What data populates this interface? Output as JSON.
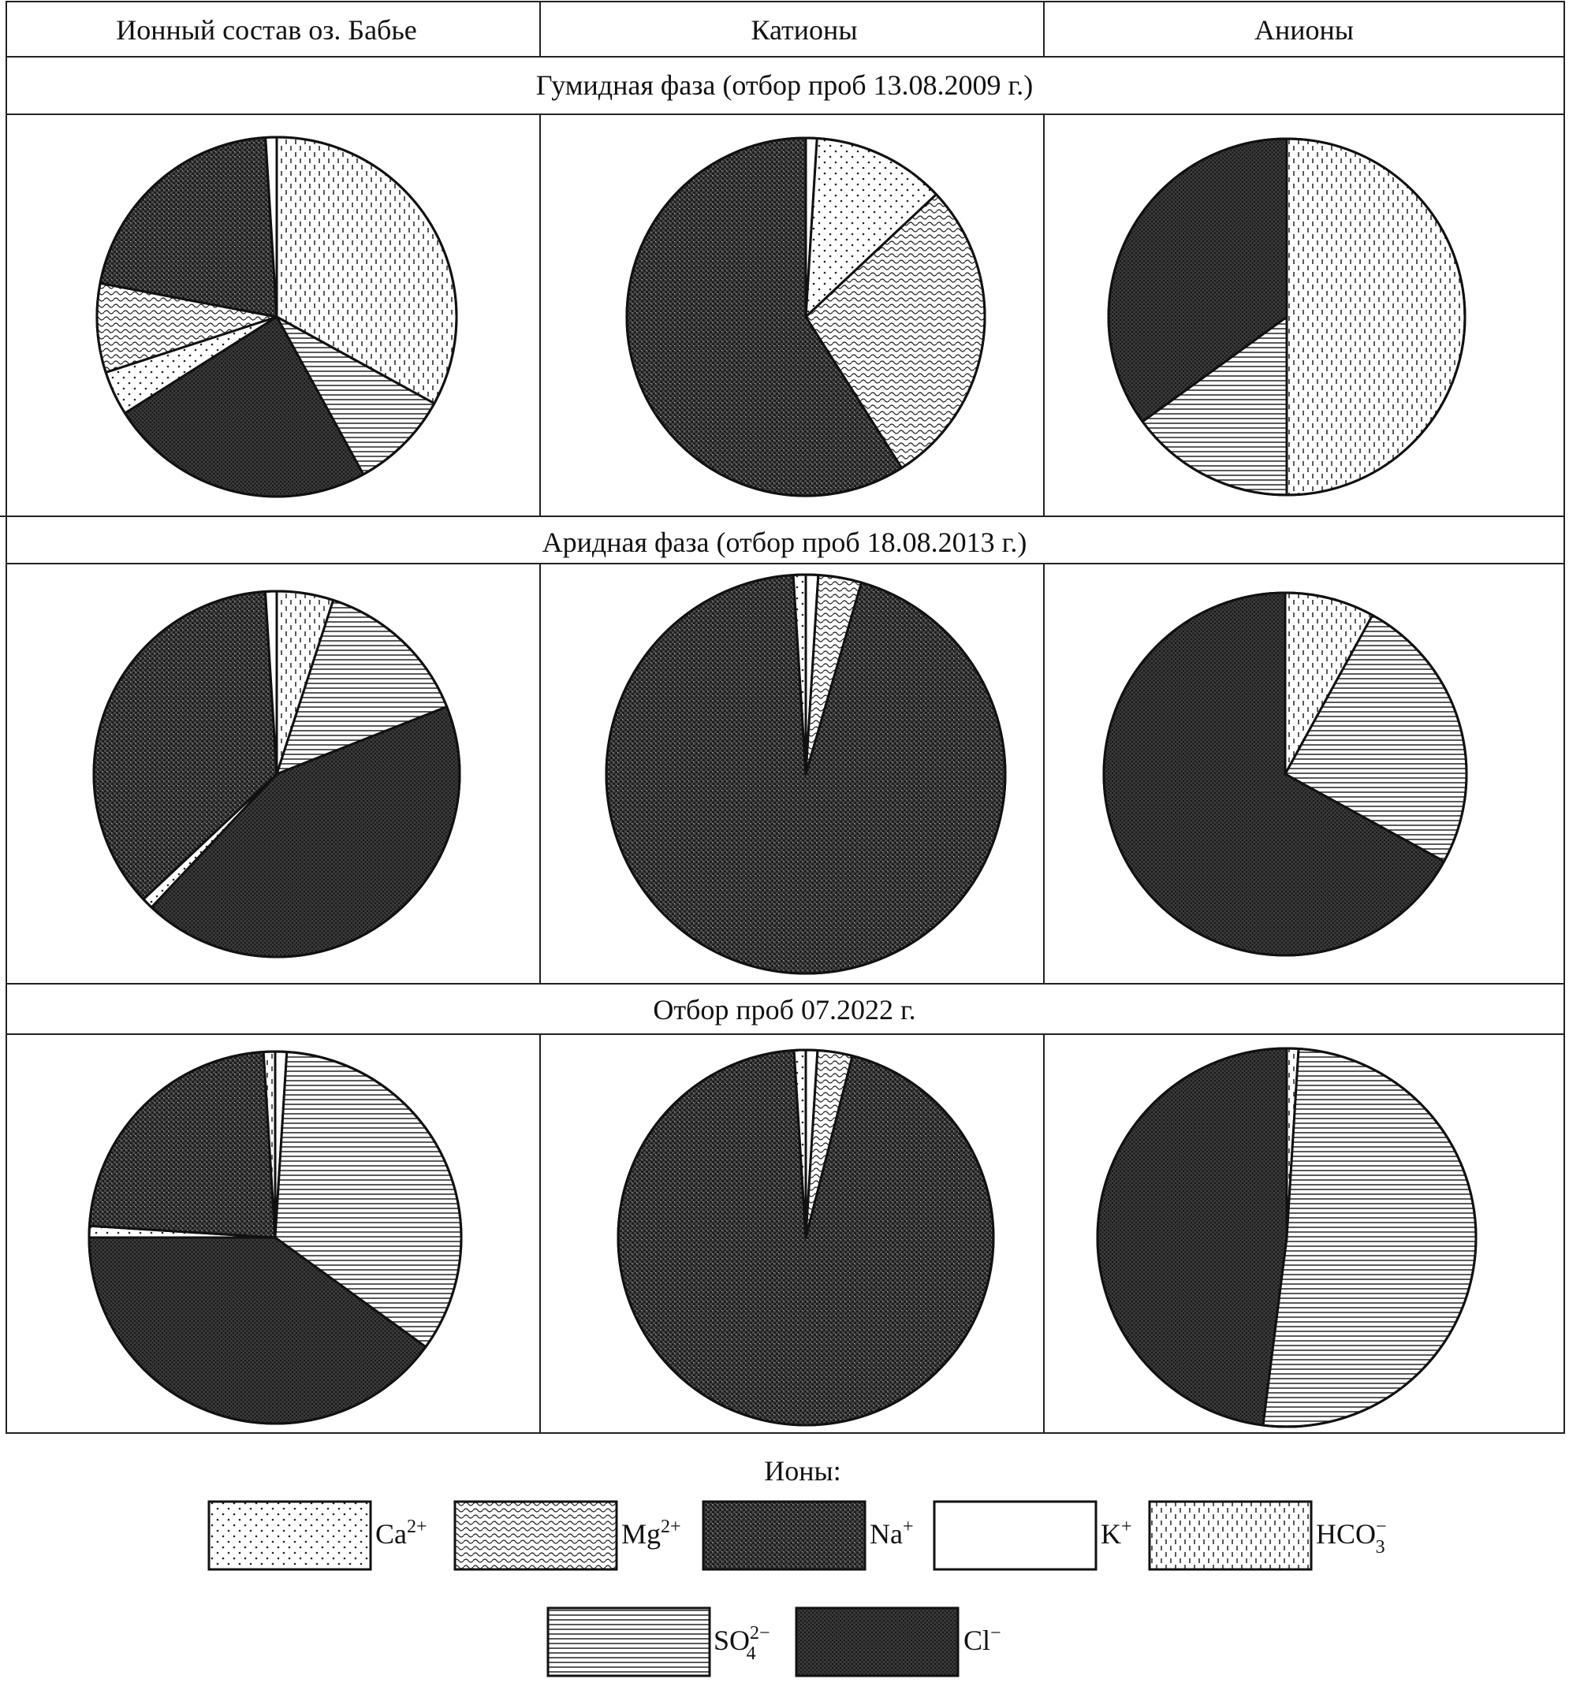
{
  "table": {
    "headers": [
      "Ионный состав оз. Бабье",
      "Катионы",
      "Анионы"
    ],
    "sections": [
      "Гумидная фаза (отбор проб 13.08.2009 г.)",
      "Аридная фаза (отбор проб 18.08.2013 г.)",
      "Отбор проб 07.2022 г."
    ]
  },
  "legend": {
    "title": "Ионы:",
    "items": [
      {
        "key": "Ca",
        "base": "Ca",
        "sup": "2+",
        "sub": "",
        "pattern": "dots"
      },
      {
        "key": "Mg",
        "base": "Mg",
        "sup": "2+",
        "sub": "",
        "pattern": "waves"
      },
      {
        "key": "Na",
        "base": "Na",
        "sup": "+",
        "sub": "",
        "pattern": "dense-checker"
      },
      {
        "key": "K",
        "base": "K",
        "sup": "+",
        "sub": "",
        "pattern": "blank"
      },
      {
        "key": "HCO3",
        "base": "HCO",
        "sup": "−",
        "sub": "3",
        "pattern": "vertical-dashes"
      },
      {
        "key": "SO4",
        "base": "SO",
        "sup": "2−",
        "sub": "4",
        "pattern": "horizontal-lines"
      },
      {
        "key": "Cl",
        "base": "Cl",
        "sup": "−",
        "sub": "",
        "pattern": "dense-dark"
      }
    ]
  },
  "chart_data": [
    {
      "type": "pie",
      "row": 0,
      "col": 0,
      "title": "",
      "labels": [
        "HCO3",
        "SO4",
        "Cl",
        "Ca",
        "Mg",
        "Na",
        "K"
      ],
      "values": [
        33,
        9,
        24,
        4,
        8,
        21,
        1
      ]
    },
    {
      "type": "pie",
      "row": 0,
      "col": 1,
      "title": "",
      "labels": [
        "K",
        "Ca",
        "Mg",
        "Na"
      ],
      "values": [
        1,
        12,
        28,
        59
      ]
    },
    {
      "type": "pie",
      "row": 0,
      "col": 2,
      "title": "",
      "labels": [
        "HCO3",
        "SO4",
        "Cl"
      ],
      "values": [
        50,
        15,
        35
      ]
    },
    {
      "type": "pie",
      "row": 1,
      "col": 0,
      "title": "",
      "labels": [
        "HCO3",
        "SO4",
        "Cl",
        "Ca",
        "Na",
        "K"
      ],
      "values": [
        5,
        14,
        43,
        1,
        36,
        1
      ]
    },
    {
      "type": "pie",
      "row": 1,
      "col": 1,
      "title": "",
      "labels": [
        "K",
        "Mg",
        "Na",
        "Ca"
      ],
      "values": [
        1,
        3.5,
        94.5,
        1
      ]
    },
    {
      "type": "pie",
      "row": 1,
      "col": 2,
      "title": "",
      "labels": [
        "HCO3",
        "SO4",
        "Cl"
      ],
      "values": [
        8,
        25,
        67
      ]
    },
    {
      "type": "pie",
      "row": 2,
      "col": 0,
      "title": "",
      "labels": [
        "K",
        "SO4",
        "Cl",
        "Ca",
        "Na",
        "HCO3"
      ],
      "values": [
        1,
        34,
        40,
        1,
        23,
        1
      ]
    },
    {
      "type": "pie",
      "row": 2,
      "col": 1,
      "title": "",
      "labels": [
        "K",
        "Mg",
        "Na",
        "Ca"
      ],
      "values": [
        1,
        3,
        95,
        1
      ]
    },
    {
      "type": "pie",
      "row": 2,
      "col": 2,
      "title": "",
      "labels": [
        "HCO3",
        "SO4",
        "Cl"
      ],
      "values": [
        1,
        51,
        48
      ]
    }
  ]
}
